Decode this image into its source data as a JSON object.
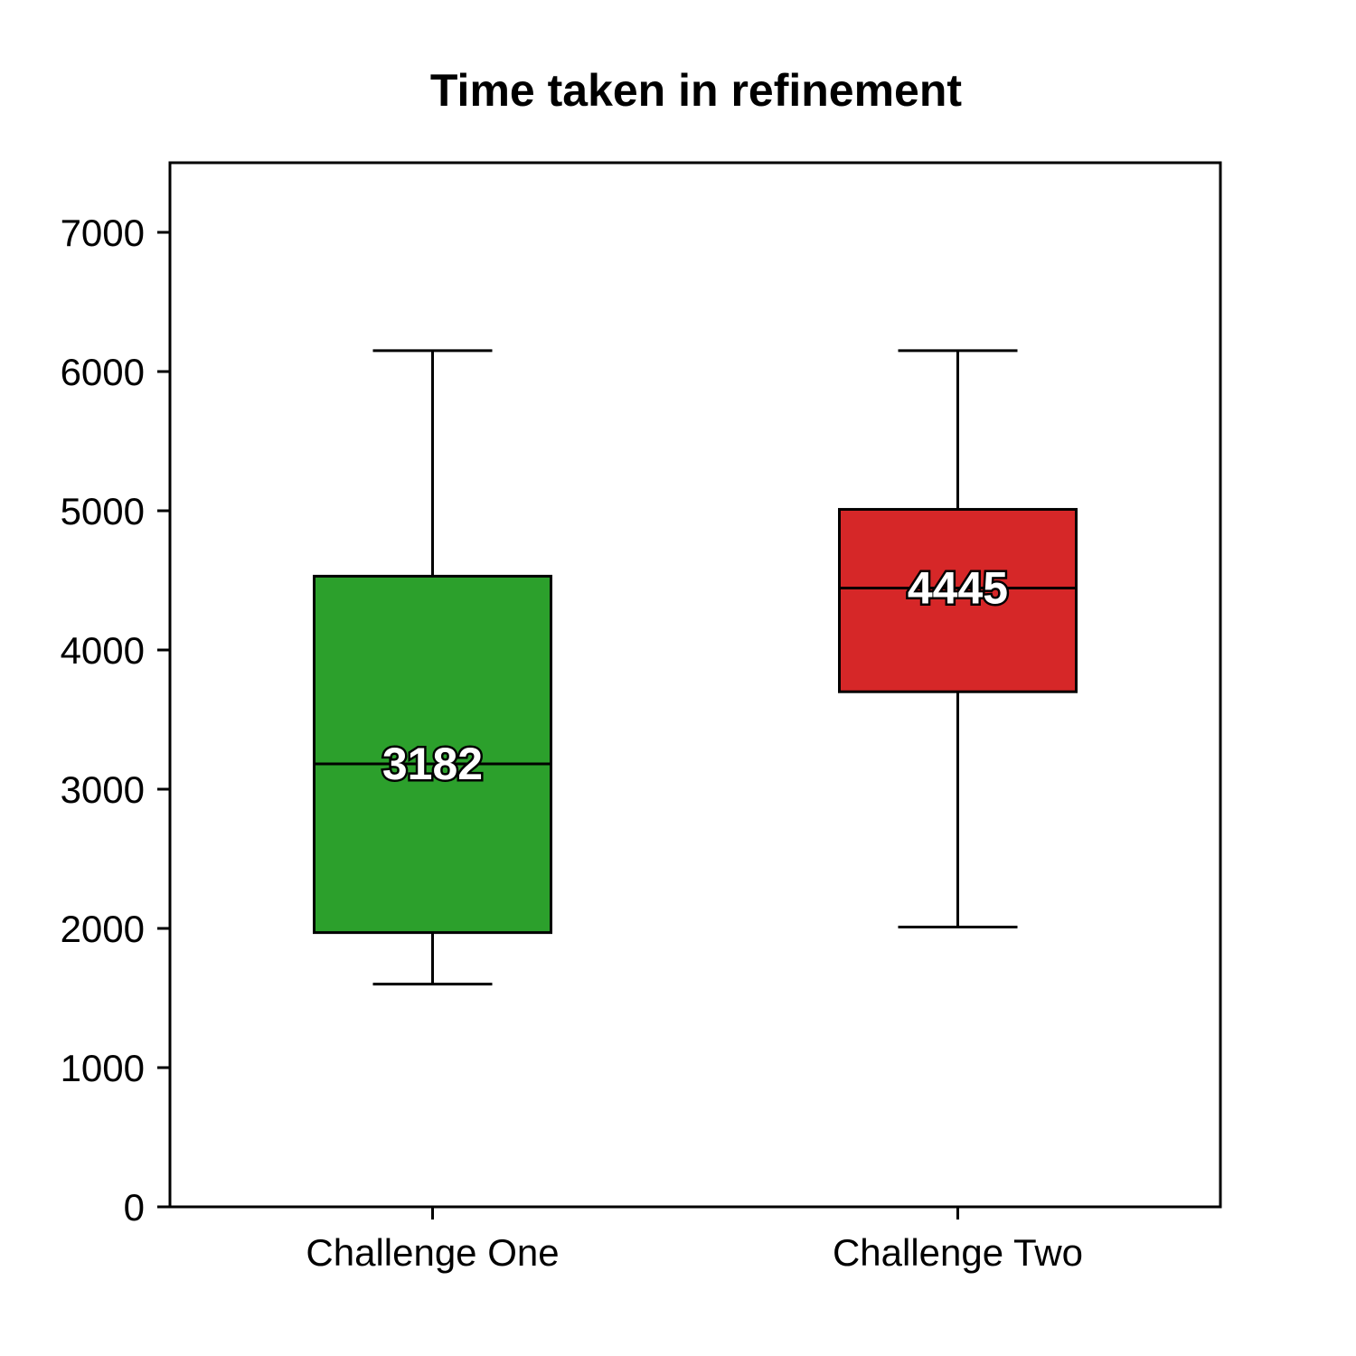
{
  "chart_data": {
    "type": "box",
    "title": "Time taken in refinement",
    "xlabel": "",
    "ylabel": "",
    "ylim": [
      0,
      7500
    ],
    "yticks": [
      0,
      1000,
      2000,
      3000,
      4000,
      5000,
      6000,
      7000
    ],
    "categories": [
      "Challenge One",
      "Challenge Two"
    ],
    "boxes": [
      {
        "category": "Challenge One",
        "whisker_low": 1600,
        "q1": 1970,
        "median": 3182,
        "q3": 4530,
        "whisker_high": 6150,
        "color": "#2ca02c",
        "median_label": "3182"
      },
      {
        "category": "Challenge Two",
        "whisker_low": 2010,
        "q1": 3700,
        "median": 4445,
        "q3": 5010,
        "whisker_high": 6150,
        "color": "#d62728",
        "median_label": "4445"
      }
    ],
    "grid": false,
    "legend": "none"
  }
}
